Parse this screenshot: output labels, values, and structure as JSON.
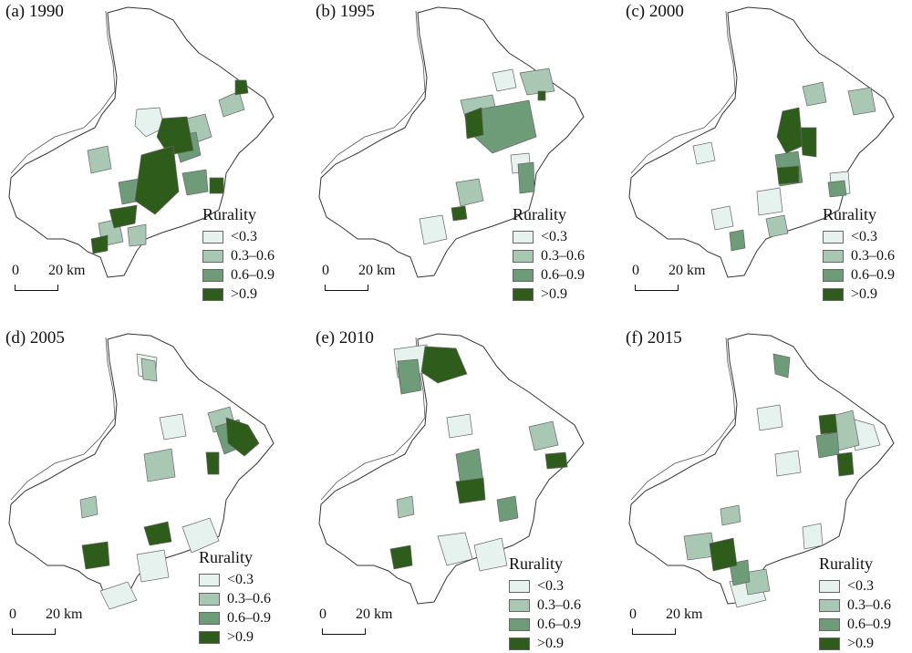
{
  "legend": {
    "title": "Rurality",
    "classes": [
      {
        "label": "<0.3",
        "color": "#e5f2ed"
      },
      {
        "label": "0.3–0.6",
        "color": "#a8c8b3"
      },
      {
        "label": "0.6–0.9",
        "color": "#6f9c78"
      },
      {
        "label": ">0.9",
        "color": "#2e5c1a"
      }
    ]
  },
  "scalebar": {
    "zero": "0",
    "distance": "20 km"
  },
  "panels": [
    {
      "title": "(a) 1990"
    },
    {
      "title": "(b) 1995"
    },
    {
      "title": "(c) 2000"
    },
    {
      "title": "(d) 2005"
    },
    {
      "title": "(e) 2010"
    },
    {
      "title": "(f) 2015"
    }
  ]
}
